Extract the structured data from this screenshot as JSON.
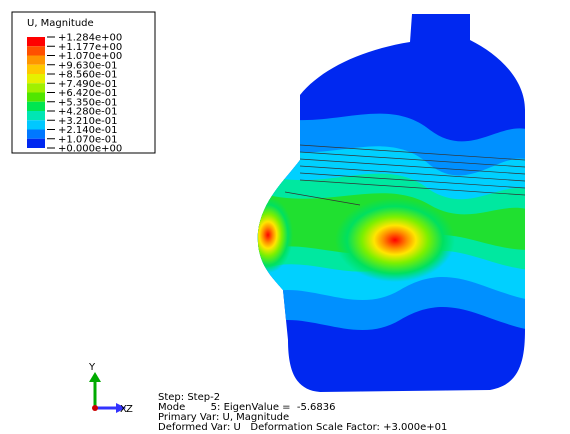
{
  "legend": {
    "title": "U, Magnitude",
    "labels": [
      "+1.284e+00",
      "+1.177e+00",
      "+1.070e+00",
      "+9.630e-01",
      "+8.560e-01",
      "+7.490e-01",
      "+6.420e-01",
      "+5.350e-01",
      "+4.280e-01",
      "+3.210e-01",
      "+2.140e-01",
      "+1.070e-01",
      "+0.000e+00"
    ]
  },
  "triad": {
    "y": "Y",
    "x": "X",
    "z": "Z"
  },
  "info": [
    "Step: Step-2",
    "Mode        5: EigenValue =  -5.6836",
    "Primary Var: U, Magnitude",
    "Deformed Var: U   Deformation Scale Factor: +3.000e+01"
  ]
}
